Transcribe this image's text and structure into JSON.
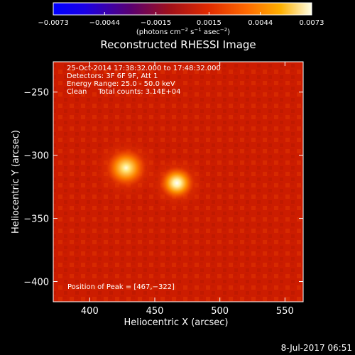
{
  "chart_data": {
    "type": "heatmap",
    "title": "Reconstructed RHESSI Image",
    "xlabel": "Heliocentric X (arcsec)",
    "ylabel": "Heliocentric Y (arcsec)",
    "xlim": [
      372,
      564
    ],
    "ylim": [
      -416,
      -226
    ],
    "x_ticks": [
      400,
      450,
      500,
      550
    ],
    "x_tick_labels": [
      "400",
      "450",
      "500",
      "550"
    ],
    "y_ticks": [
      -400,
      -350,
      -300,
      -250
    ],
    "y_tick_labels": [
      "−400",
      "−350",
      "−300",
      "−250"
    ],
    "colorbar": {
      "min": -0.0073,
      "max": 0.0073,
      "ticks": [
        -0.0073,
        -0.0044,
        -0.0015,
        0.0015,
        0.0044,
        0.0073
      ],
      "tick_labels": [
        "−0.0073",
        "−0.0044",
        "−0.0015",
        "0.0015",
        "0.0044",
        "0.0073"
      ],
      "units_main": "(photons cm",
      "units_exp1": "−2",
      "units_mid": " s",
      "units_exp2": "−1",
      "units_end": " asec",
      "units_exp3": "−2",
      "units_close": ")"
    },
    "sources": [
      {
        "x": 428,
        "y": -310,
        "peak": 0.0062,
        "sigma": 8
      },
      {
        "x": 467,
        "y": -322,
        "peak": 0.0073,
        "sigma": 7
      }
    ],
    "annotations": [
      "25-Oct-2014 17:38:32.000 to 17:48:32.000",
      "Detectors: 3F 6F 9F, Att 1",
      "Energy Range: 25.0 - 50.0 keV",
      "Clean     Total counts: 3.14E+04"
    ],
    "peak_label": "Position of Peak = [467,−322]",
    "footer_date": "8-Jul-2017 06:51"
  }
}
